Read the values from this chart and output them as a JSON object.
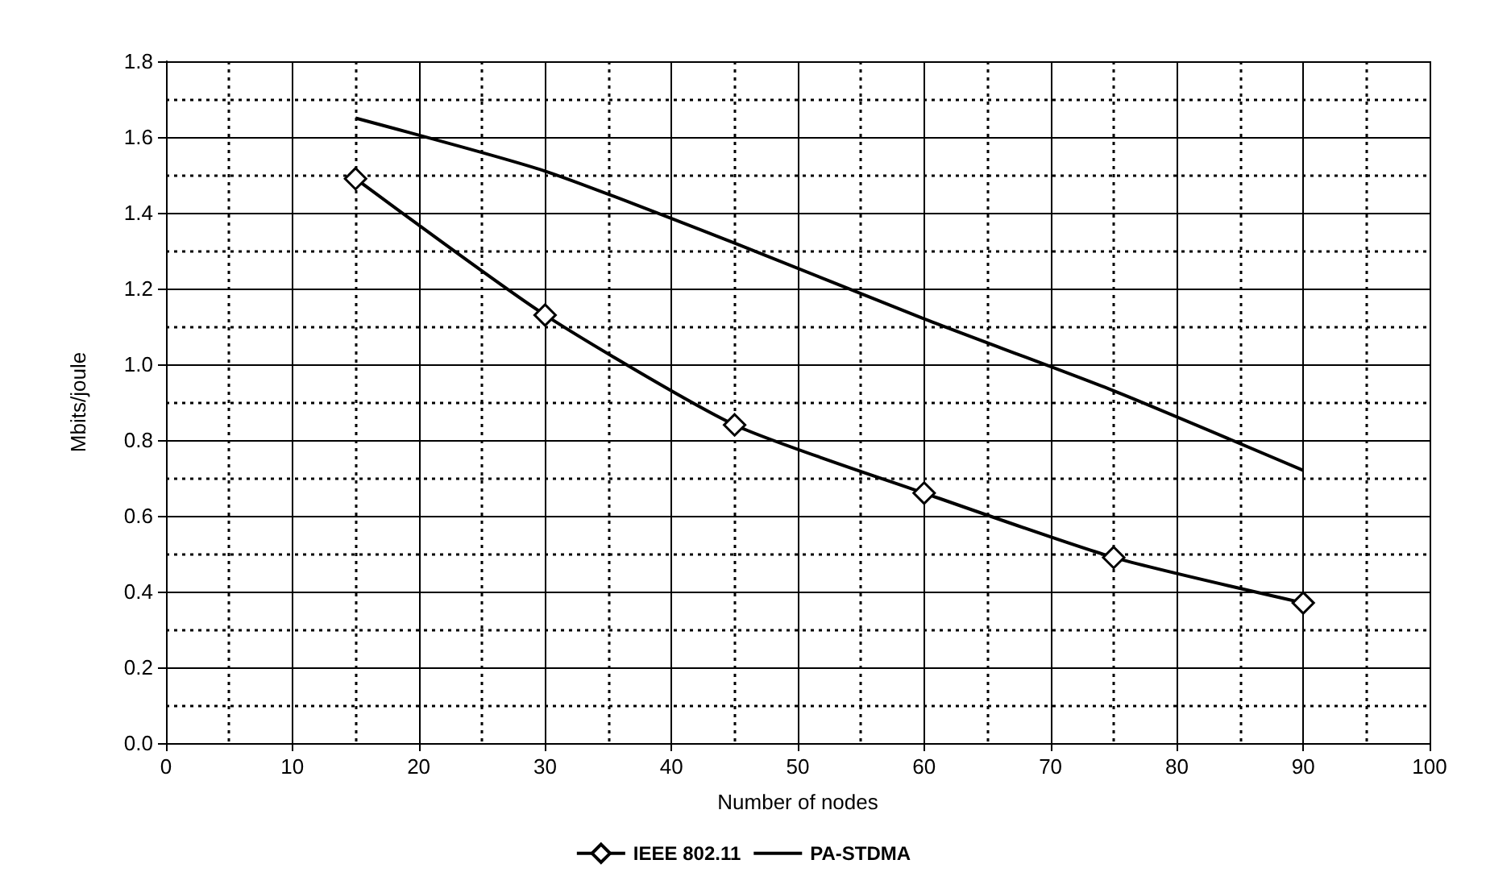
{
  "chart_data": {
    "type": "line",
    "xlabel": "Number of nodes",
    "ylabel": "Mbits/joule",
    "x": [
      15,
      30,
      45,
      60,
      75,
      90
    ],
    "series": [
      {
        "name": "IEEE 802.11",
        "color": "#000000",
        "marker": "diamond",
        "values": [
          1.49,
          1.13,
          0.84,
          0.66,
          0.49,
          0.37
        ]
      },
      {
        "name": "PA-STDMA",
        "color": "#000000",
        "marker": "none",
        "values": [
          1.65,
          1.51,
          1.32,
          1.12,
          0.93,
          0.72
        ]
      }
    ],
    "xlim": [
      0,
      100
    ],
    "xticks": [
      0,
      10,
      20,
      30,
      40,
      50,
      60,
      70,
      80,
      90,
      100
    ],
    "ylim": [
      0,
      1.8
    ],
    "yticks": [
      {
        "value": 0,
        "label": "0.0"
      },
      0.2,
      0.4,
      0.6,
      0.8,
      {
        "value": 1,
        "label": "1.0"
      },
      1.2,
      1.4,
      1.6,
      1.8
    ],
    "grid": true,
    "legend": "bottom",
    "line_style": "solid"
  }
}
